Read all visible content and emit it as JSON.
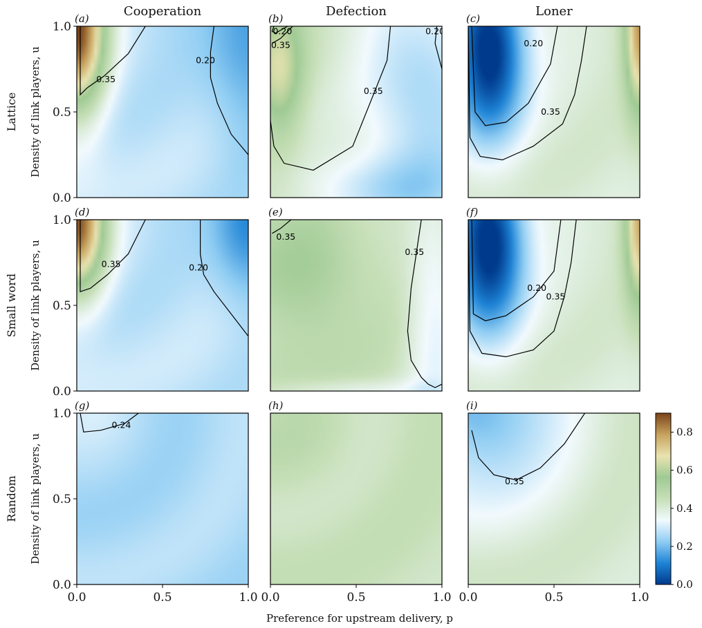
{
  "chart_data": {
    "type": "heatmap",
    "columns": [
      "Cooperation",
      "Defection",
      "Loner"
    ],
    "rows": [
      "Lattice",
      "Small word",
      "Random"
    ],
    "xlabel": "Preference for upstream delivery, p",
    "ylabel": "Density of link players, u",
    "xlim": [
      0.0,
      1.0
    ],
    "ylim": [
      0.0,
      1.0
    ],
    "x_ticks": [
      "0.0",
      "0.5",
      "1.0"
    ],
    "y_ticks": [
      "0.0",
      "0.5",
      "1.0"
    ],
    "colorbar": {
      "range": [
        0.0,
        0.9
      ],
      "ticks": [
        "0.0",
        "0.2",
        "0.4",
        "0.6",
        "0.8"
      ],
      "colors": [
        "#003a8c",
        "#1f84d6",
        "#8fcdf3",
        "#f2fafe",
        "#c6dfb7",
        "#9fca94",
        "#e9e3b0",
        "#c7a25e",
        "#7a4419"
      ]
    },
    "panels": [
      {
        "label": "(a)",
        "row": "Lattice",
        "column": "Cooperation",
        "base": 0.28,
        "blobs": [
          {
            "x": 0.0,
            "y": 1.0,
            "sx": 0.12,
            "sy": 0.35,
            "a": 0.62
          },
          {
            "x": 1.0,
            "y": 1.0,
            "sx": 0.18,
            "sy": 0.45,
            "a": -0.14
          }
        ],
        "contours": [
          {
            "level": "0.35",
            "points": [
              [
                0.02,
                1.0
              ],
              [
                0.02,
                0.6
              ],
              [
                0.06,
                0.64
              ],
              [
                0.16,
                0.71
              ],
              [
                0.3,
                0.84
              ],
              [
                0.4,
                1.0
              ]
            ],
            "label_at": [
              0.17,
              0.69
            ]
          },
          {
            "level": "0.20",
            "points": [
              [
                0.8,
                1.0
              ],
              [
                0.78,
                0.85
              ],
              [
                0.78,
                0.7
              ],
              [
                0.82,
                0.55
              ],
              [
                0.9,
                0.37
              ],
              [
                1.0,
                0.25
              ]
            ],
            "label_at": [
              0.75,
              0.8
            ]
          }
        ]
      },
      {
        "label": "(b)",
        "row": "Lattice",
        "column": "Defection",
        "base": 0.42,
        "blobs": [
          {
            "x": 0.05,
            "y": 0.75,
            "sx": 0.1,
            "sy": 0.3,
            "a": 0.22
          },
          {
            "x": 0.9,
            "y": 0.6,
            "sx": 0.25,
            "sy": 0.5,
            "a": -0.18
          },
          {
            "x": 0.6,
            "y": 0.05,
            "sx": 0.35,
            "sy": 0.15,
            "a": -0.12
          }
        ],
        "contours": [
          {
            "level": "0.20",
            "points": [
              [
                0.02,
                1.0
              ],
              [
                0.01,
                0.97
              ],
              [
                0.03,
                0.96
              ],
              [
                0.1,
                1.0
              ]
            ],
            "label_at": [
              0.07,
              0.97
            ]
          },
          {
            "level": "0.35",
            "points": [
              [
                0.01,
                0.9
              ],
              [
                0.06,
                0.93
              ],
              [
                0.13,
                1.0
              ]
            ],
            "label_at": [
              0.06,
              0.89
            ]
          },
          {
            "level": "0.35",
            "points": [
              [
                0.7,
                1.0
              ],
              [
                0.68,
                0.8
              ],
              [
                0.62,
                0.65
              ],
              [
                0.48,
                0.3
              ],
              [
                0.25,
                0.16
              ],
              [
                0.08,
                0.2
              ],
              [
                0.02,
                0.3
              ],
              [
                0.0,
                0.45
              ]
            ],
            "label_at": [
              0.6,
              0.62
            ]
          },
          {
            "level": "0.20",
            "points": [
              [
                0.97,
                1.0
              ],
              [
                0.96,
                0.9
              ],
              [
                1.0,
                0.75
              ]
            ],
            "label_at": [
              0.96,
              0.97
            ]
          }
        ]
      },
      {
        "label": "(c)",
        "row": "Lattice",
        "column": "Loner",
        "base": 0.4,
        "blobs": [
          {
            "x": 0.12,
            "y": 0.85,
            "sx": 0.15,
            "sy": 0.35,
            "a": -0.45
          },
          {
            "x": 1.0,
            "y": 1.0,
            "sx": 0.06,
            "sy": 0.35,
            "a": 0.38
          }
        ],
        "contours": [
          {
            "level": "0.20",
            "points": [
              [
                0.02,
                1.0
              ],
              [
                0.04,
                0.5
              ],
              [
                0.1,
                0.42
              ],
              [
                0.22,
                0.44
              ],
              [
                0.35,
                0.55
              ],
              [
                0.48,
                0.78
              ],
              [
                0.52,
                1.0
              ]
            ],
            "label_at": [
              0.38,
              0.9
            ]
          },
          {
            "level": "0.35",
            "points": [
              [
                0.0,
                1.0
              ],
              [
                0.01,
                0.35
              ],
              [
                0.07,
                0.24
              ],
              [
                0.2,
                0.22
              ],
              [
                0.38,
                0.3
              ],
              [
                0.55,
                0.43
              ],
              [
                0.62,
                0.6
              ],
              [
                0.66,
                0.8
              ],
              [
                0.69,
                1.0
              ]
            ],
            "label_at": [
              0.48,
              0.5
            ]
          }
        ]
      },
      {
        "label": "(d)",
        "row": "Small word",
        "column": "Cooperation",
        "base": 0.28,
        "blobs": [
          {
            "x": 0.0,
            "y": 1.0,
            "sx": 0.12,
            "sy": 0.3,
            "a": 0.6
          },
          {
            "x": 1.0,
            "y": 1.0,
            "sx": 0.15,
            "sy": 0.3,
            "a": -0.18
          }
        ],
        "contours": [
          {
            "level": "0.35",
            "points": [
              [
                0.02,
                1.0
              ],
              [
                0.02,
                0.58
              ],
              [
                0.08,
                0.6
              ],
              [
                0.18,
                0.68
              ],
              [
                0.3,
                0.8
              ],
              [
                0.4,
                1.0
              ]
            ],
            "label_at": [
              0.2,
              0.74
            ]
          },
          {
            "level": "0.20",
            "points": [
              [
                0.72,
                1.0
              ],
              [
                0.72,
                0.8
              ],
              [
                0.74,
                0.68
              ],
              [
                0.8,
                0.58
              ],
              [
                0.9,
                0.45
              ],
              [
                1.0,
                0.32
              ]
            ],
            "label_at": [
              0.71,
              0.72
            ]
          }
        ]
      },
      {
        "label": "(e)",
        "row": "Small word",
        "column": "Defection",
        "base": 0.44,
        "blobs": [
          {
            "x": 0.2,
            "y": 0.65,
            "sx": 0.25,
            "sy": 0.3,
            "a": 0.1
          },
          {
            "x": 0.95,
            "y": 0.5,
            "sx": 0.12,
            "sy": 0.6,
            "a": -0.12
          },
          {
            "x": 0.5,
            "y": 0.0,
            "sx": 0.4,
            "sy": 0.05,
            "a": -0.08
          }
        ],
        "contours": [
          {
            "level": "0.35",
            "points": [
              [
                0.01,
                0.92
              ],
              [
                0.06,
                0.95
              ],
              [
                0.12,
                1.0
              ]
            ],
            "label_at": [
              0.09,
              0.9
            ]
          },
          {
            "level": "0.35",
            "points": [
              [
                0.88,
                1.0
              ],
              [
                0.85,
                0.8
              ],
              [
                0.82,
                0.6
              ],
              [
                0.8,
                0.35
              ],
              [
                0.82,
                0.18
              ],
              [
                0.88,
                0.08
              ],
              [
                0.92,
                0.04
              ],
              [
                0.96,
                0.02
              ],
              [
                1.0,
                0.04
              ]
            ],
            "label_at": [
              0.84,
              0.81
            ]
          }
        ]
      },
      {
        "label": "(f)",
        "row": "Small word",
        "column": "Loner",
        "base": 0.4,
        "blobs": [
          {
            "x": 0.12,
            "y": 0.85,
            "sx": 0.15,
            "sy": 0.35,
            "a": -0.45
          },
          {
            "x": 1.0,
            "y": 1.0,
            "sx": 0.06,
            "sy": 0.35,
            "a": 0.35
          }
        ],
        "contours": [
          {
            "level": "0.20",
            "points": [
              [
                0.02,
                1.0
              ],
              [
                0.03,
                0.45
              ],
              [
                0.1,
                0.41
              ],
              [
                0.22,
                0.44
              ],
              [
                0.38,
                0.55
              ],
              [
                0.5,
                0.7
              ],
              [
                0.54,
                1.0
              ]
            ],
            "label_at": [
              0.4,
              0.6
            ]
          },
          {
            "level": "0.35",
            "points": [
              [
                0.0,
                1.0
              ],
              [
                0.01,
                0.35
              ],
              [
                0.08,
                0.22
              ],
              [
                0.22,
                0.2
              ],
              [
                0.38,
                0.24
              ],
              [
                0.5,
                0.35
              ],
              [
                0.56,
                0.55
              ],
              [
                0.6,
                0.75
              ],
              [
                0.63,
                1.0
              ]
            ],
            "label_at": [
              0.51,
              0.55
            ]
          }
        ]
      },
      {
        "label": "(g)",
        "row": "Random",
        "column": "Cooperation",
        "base": 0.26,
        "blobs": [
          {
            "x": 0.02,
            "y": 1.0,
            "sx": 0.15,
            "sy": 0.12,
            "a": 0.04
          }
        ],
        "contours": [
          {
            "level": "0.24",
            "points": [
              [
                0.02,
                1.0
              ],
              [
                0.04,
                0.89
              ],
              [
                0.14,
                0.9
              ],
              [
                0.28,
                0.94
              ],
              [
                0.36,
                1.0
              ]
            ],
            "label_at": [
              0.26,
              0.93
            ]
          }
        ]
      },
      {
        "label": "(h)",
        "row": "Random",
        "column": "Defection",
        "base": 0.44,
        "blobs": [
          {
            "x": 0.1,
            "y": 0.9,
            "sx": 0.2,
            "sy": 0.2,
            "a": 0.03
          }
        ],
        "contours": []
      },
      {
        "label": "(i)",
        "row": "Random",
        "column": "Loner",
        "base": 0.41,
        "blobs": [
          {
            "x": 0.1,
            "y": 1.0,
            "sx": 0.3,
            "sy": 0.35,
            "a": -0.22
          }
        ],
        "contours": [
          {
            "level": "0.35",
            "points": [
              [
                0.02,
                0.9
              ],
              [
                0.06,
                0.74
              ],
              [
                0.15,
                0.64
              ],
              [
                0.28,
                0.61
              ],
              [
                0.42,
                0.68
              ],
              [
                0.56,
                0.82
              ],
              [
                0.68,
                1.0
              ]
            ],
            "label_at": [
              0.27,
              0.6
            ]
          }
        ]
      }
    ]
  }
}
